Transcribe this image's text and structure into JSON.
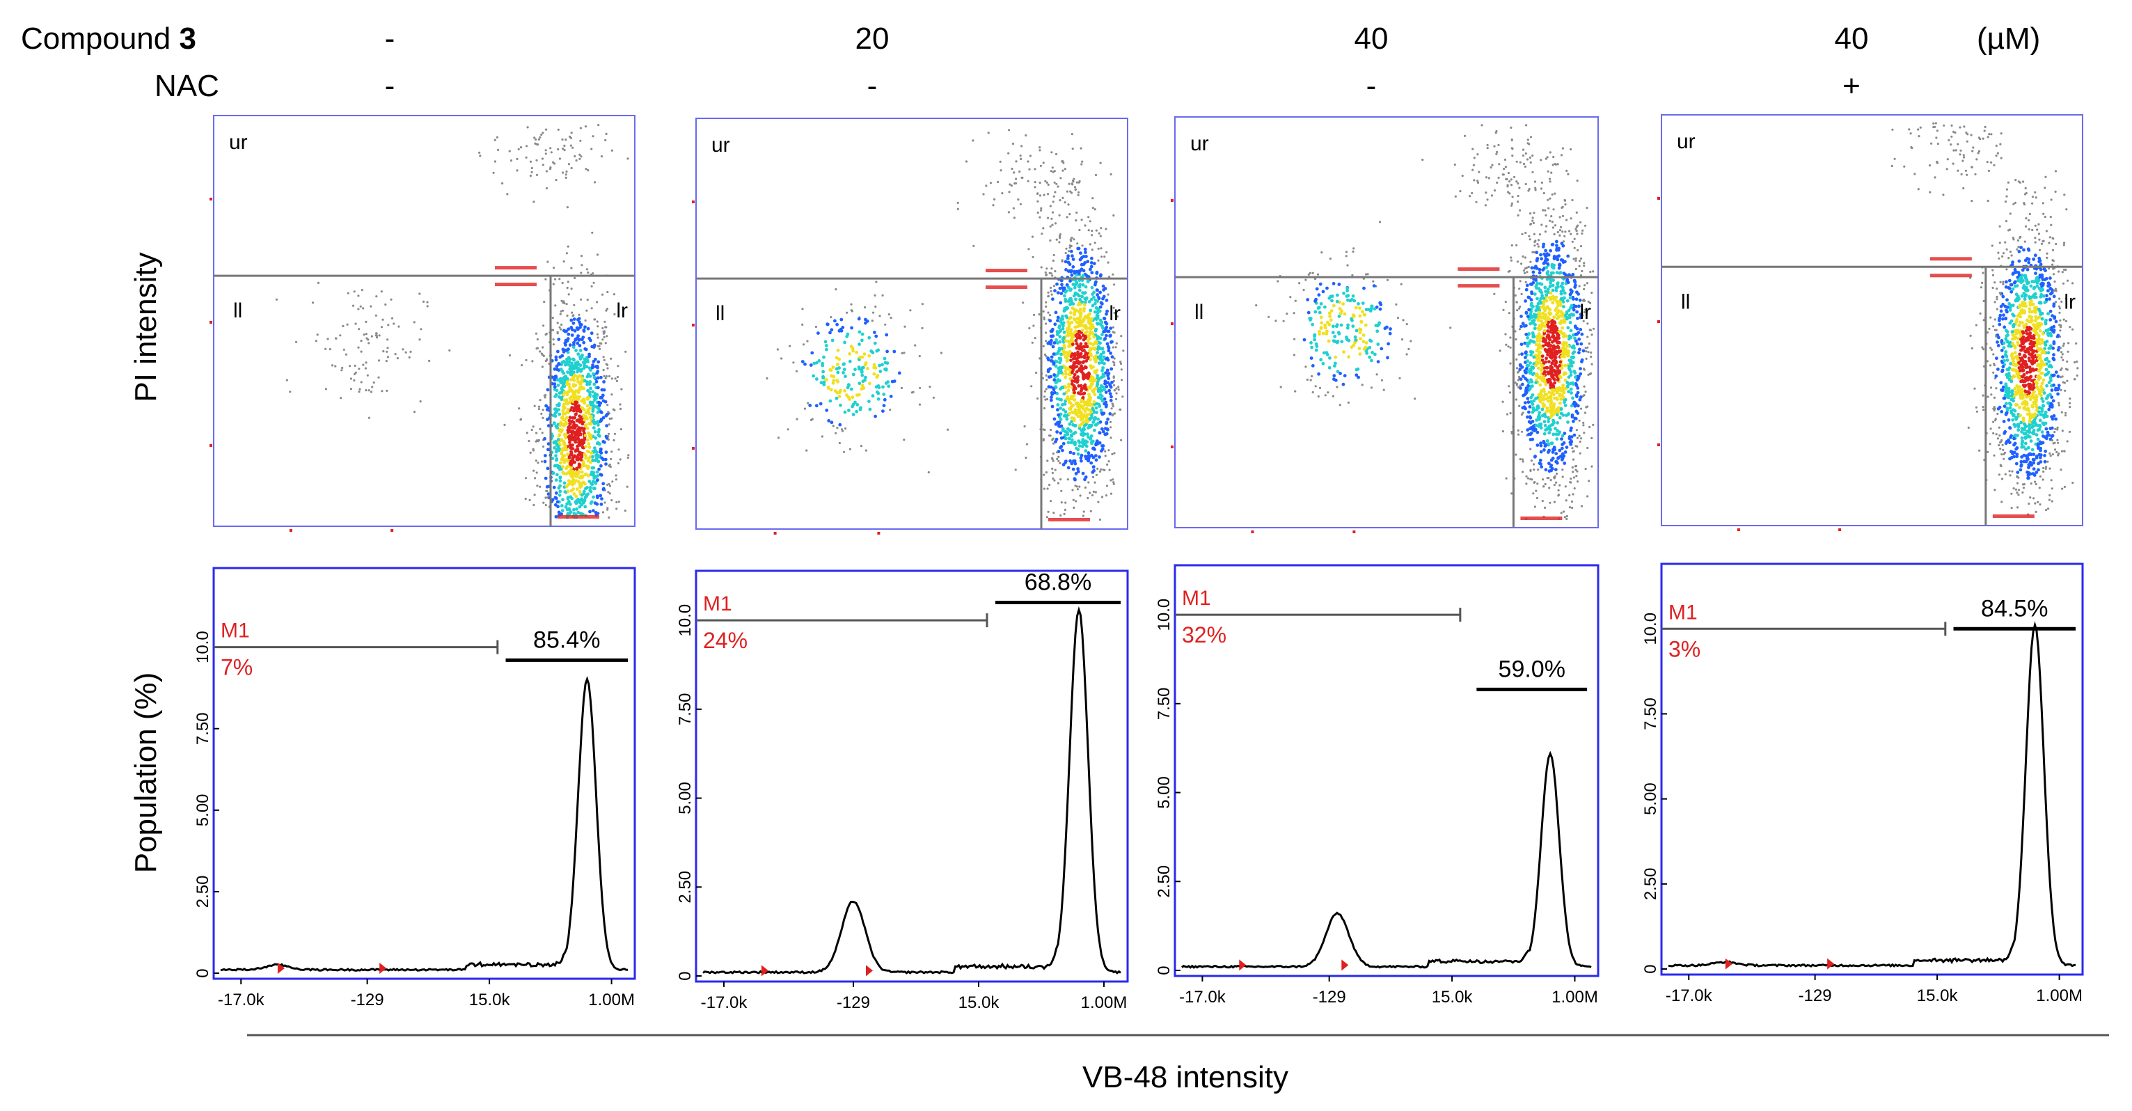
{
  "header": {
    "compound_label": "Compound",
    "compound_number": "3",
    "nac_label": "NAC",
    "unit": "(µM)",
    "conc_values": [
      "-",
      "20",
      "40",
      "40"
    ],
    "nac_values": [
      "-",
      "-",
      "-",
      "+"
    ]
  },
  "axes": {
    "pi_ylabel": "PI intensity",
    "pop_ylabel": "Population (%)",
    "xlabel": "VB-48 intensity"
  },
  "quadrant_labels": {
    "ur": "ur",
    "ll": "ll",
    "lr": "lr"
  },
  "chart_data": [
    {
      "type": "scatter",
      "panel": 1,
      "title": "Compound 3 -, NAC -",
      "xlabel": "VB-48 intensity",
      "ylabel": "PI intensity",
      "quadrants": [
        "ur",
        "ll",
        "lr"
      ],
      "clusters": [
        {
          "name": "live",
          "x_frac": 0.86,
          "y_frac": 0.22,
          "density": "high"
        },
        {
          "name": "dead",
          "x_frac": 0.36,
          "y_frac": 0.45,
          "density": "low"
        },
        {
          "name": "upper",
          "x_frac": 0.8,
          "y_frac": 0.92,
          "density": "low"
        }
      ]
    },
    {
      "type": "scatter",
      "panel": 2,
      "title": "Compound 3 20 µM, NAC -",
      "xlabel": "VB-48 intensity",
      "ylabel": "PI intensity",
      "quadrants": [
        "ur",
        "ll",
        "lr"
      ],
      "clusters": [
        {
          "name": "live",
          "x_frac": 0.89,
          "y_frac": 0.4,
          "density": "high"
        },
        {
          "name": "dead",
          "x_frac": 0.36,
          "y_frac": 0.38,
          "density": "medium"
        },
        {
          "name": "upper",
          "x_frac": 0.8,
          "y_frac": 0.85,
          "density": "low"
        }
      ]
    },
    {
      "type": "scatter",
      "panel": 3,
      "title": "Compound 3 40 µM, NAC -",
      "xlabel": "VB-48 intensity",
      "ylabel": "PI intensity",
      "quadrants": [
        "ur",
        "ll",
        "lr"
      ],
      "clusters": [
        {
          "name": "live",
          "x_frac": 0.89,
          "y_frac": 0.42,
          "density": "high"
        },
        {
          "name": "dead",
          "x_frac": 0.4,
          "y_frac": 0.48,
          "density": "medium"
        },
        {
          "name": "upper",
          "x_frac": 0.8,
          "y_frac": 0.88,
          "density": "low"
        }
      ]
    },
    {
      "type": "scatter",
      "panel": 4,
      "title": "Compound 3 40 µM, NAC +",
      "xlabel": "VB-48 intensity",
      "ylabel": "PI intensity",
      "quadrants": [
        "ur",
        "ll",
        "lr"
      ],
      "clusters": [
        {
          "name": "live",
          "x_frac": 0.87,
          "y_frac": 0.4,
          "density": "high"
        },
        {
          "name": "upper",
          "x_frac": 0.7,
          "y_frac": 0.93,
          "density": "low"
        }
      ]
    },
    {
      "type": "line",
      "panel": 1,
      "title": "Compound 3 -, NAC -",
      "xlabel": "VB-48 intensity",
      "ylabel": "Population (%)",
      "x_tick_labels": [
        "-17.0k",
        "-129",
        "15.0k",
        "1.00M"
      ],
      "y_ticks": [
        0,
        2.5,
        5.0,
        7.5,
        10.0
      ],
      "y_tick_labels": [
        "0",
        "2.50",
        "5.00",
        "7.50",
        "10.0"
      ],
      "ylim": [
        0,
        12
      ],
      "gate_label": "M1",
      "m1_percent": "7%",
      "high_percent": "85.4%",
      "gate_y": 10.0,
      "high_bar_y": 9.6,
      "peaks": [
        {
          "center": 0.14,
          "height": 0.15
        },
        {
          "center": 0.9,
          "height": 8.9
        }
      ]
    },
    {
      "type": "line",
      "panel": 2,
      "title": "Compound 3 20 µM, NAC -",
      "xlabel": "VB-48 intensity",
      "ylabel": "Population (%)",
      "x_tick_labels": [
        "-17.0k",
        "-129",
        "15.0k",
        "1.00M"
      ],
      "y_ticks": [
        0,
        2.5,
        5.0,
        7.5,
        10.0
      ],
      "y_tick_labels": [
        "0",
        "2.50",
        "5.00",
        "7.50",
        "10.0"
      ],
      "ylim": [
        0,
        11
      ],
      "gate_label": "M1",
      "m1_percent": "24%",
      "high_percent": "68.8%",
      "gate_y": 10.0,
      "high_bar_y": 10.5,
      "peaks": [
        {
          "center": 0.36,
          "height": 2.0
        },
        {
          "center": 0.9,
          "height": 10.2
        }
      ]
    },
    {
      "type": "line",
      "panel": 3,
      "title": "Compound 3 40 µM, NAC -",
      "xlabel": "VB-48 intensity",
      "ylabel": "Population (%)",
      "x_tick_labels": [
        "-17.0k",
        "-129",
        "15.0k",
        "1.00M"
      ],
      "y_ticks": [
        0,
        2.5,
        5.0,
        7.5,
        10.0
      ],
      "y_tick_labels": [
        "0",
        "2.50",
        "5.00",
        "7.50",
        "10.0"
      ],
      "ylim": [
        0,
        11
      ],
      "gate_label": "M1",
      "m1_percent": "32%",
      "high_percent": "59.0%",
      "gate_y": 10.0,
      "high_bar_y": 7.9,
      "peaks": [
        {
          "center": 0.38,
          "height": 1.5
        },
        {
          "center": 0.9,
          "height": 6.0
        }
      ]
    },
    {
      "type": "line",
      "panel": 4,
      "title": "Compound 3 40 µM, NAC +",
      "xlabel": "VB-48 intensity",
      "ylabel": "Population (%)",
      "x_tick_labels": [
        "-17.0k",
        "-129",
        "15.0k",
        "1.00M"
      ],
      "y_ticks": [
        0,
        2.5,
        5.0,
        7.5,
        10.0
      ],
      "y_tick_labels": [
        "0",
        "2.50",
        "5.00",
        "7.50",
        "10.0"
      ],
      "ylim": [
        0,
        11.5
      ],
      "gate_label": "M1",
      "m1_percent": "3%",
      "high_percent": "84.5%",
      "gate_y": 10.0,
      "high_bar_y": 10.0,
      "peaks": [
        {
          "center": 0.14,
          "height": 0.1
        },
        {
          "center": 0.9,
          "height": 10.0
        }
      ]
    }
  ],
  "colors": {
    "frame": "#6a6af0",
    "hist_frame": "#2a2aee",
    "gate_red": "#e02020",
    "gate_line": "#555555",
    "scatter_dot": "#8a8a8a",
    "density_low": "#2060ff",
    "density_mid": "#20d0d0",
    "density_high": "#f0e020",
    "density_peak": "#e02020"
  }
}
